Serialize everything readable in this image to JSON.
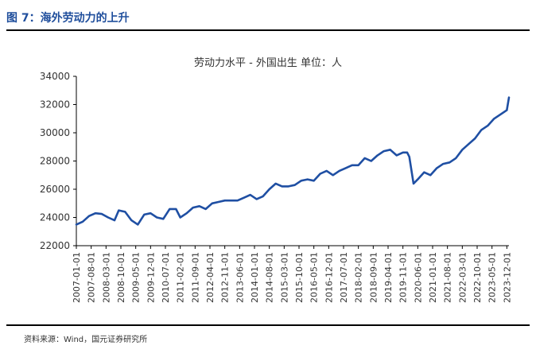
{
  "figure_title": "图 7：海外劳动力的上升",
  "source_note": "资料来源：Wind，国元证券研究所",
  "colors": {
    "line": "#1f4fa3",
    "title": "#1f4e9c"
  },
  "chart_data": {
    "type": "line",
    "title": "劳动力水平 - 外国出生 单位：人",
    "xlabel": "",
    "ylabel": "",
    "ylim": [
      22000,
      34000
    ],
    "y_ticks": [
      22000,
      24000,
      26000,
      28000,
      30000,
      32000,
      34000
    ],
    "y_tick_labels": [
      "22000",
      "24000",
      "26000",
      "28000",
      "30000",
      "32000",
      "34000"
    ],
    "x_tick_labels": [
      "2007-01-01",
      "2007-08-01",
      "2008-03-01",
      "2008-10-01",
      "2009-05-01",
      "2009-12-01",
      "2010-07-01",
      "2011-02-01",
      "2011-09-01",
      "2012-04-01",
      "2012-11-01",
      "2013-06-01",
      "2014-01-01",
      "2014-08-01",
      "2015-03-01",
      "2015-10-01",
      "2016-05-01",
      "2016-12-01",
      "2017-07-01",
      "2018-02-01",
      "2018-09-01",
      "2019-04-01",
      "2019-11-01",
      "2020-06-01",
      "2021-01-01",
      "2021-08-01",
      "2022-03-01",
      "2022-10-01",
      "2023-05-01",
      "2023-12-01"
    ],
    "grid": false,
    "series": [
      {
        "points": [
          [
            "2007-01",
            23500
          ],
          [
            "2007-04",
            23700
          ],
          [
            "2007-07",
            24100
          ],
          [
            "2007-10",
            24300
          ],
          [
            "2008-01",
            24250
          ],
          [
            "2008-04",
            24000
          ],
          [
            "2008-07",
            23800
          ],
          [
            "2008-09",
            24500
          ],
          [
            "2008-12",
            24400
          ],
          [
            "2009-03",
            23800
          ],
          [
            "2009-06",
            23500
          ],
          [
            "2009-09",
            24200
          ],
          [
            "2009-12",
            24300
          ],
          [
            "2010-03",
            24000
          ],
          [
            "2010-06",
            23900
          ],
          [
            "2010-09",
            24600
          ],
          [
            "2010-12",
            24600
          ],
          [
            "2011-02",
            24000
          ],
          [
            "2011-05",
            24300
          ],
          [
            "2011-08",
            24700
          ],
          [
            "2011-11",
            24800
          ],
          [
            "2012-02",
            24600
          ],
          [
            "2012-05",
            25000
          ],
          [
            "2012-08",
            25100
          ],
          [
            "2012-11",
            25200
          ],
          [
            "2013-02",
            25200
          ],
          [
            "2013-05",
            25200
          ],
          [
            "2013-08",
            25400
          ],
          [
            "2013-11",
            25600
          ],
          [
            "2014-02",
            25300
          ],
          [
            "2014-05",
            25500
          ],
          [
            "2014-08",
            26000
          ],
          [
            "2014-11",
            26400
          ],
          [
            "2015-02",
            26200
          ],
          [
            "2015-05",
            26200
          ],
          [
            "2015-08",
            26300
          ],
          [
            "2015-11",
            26600
          ],
          [
            "2016-02",
            26700
          ],
          [
            "2016-05",
            26600
          ],
          [
            "2016-08",
            27100
          ],
          [
            "2016-11",
            27300
          ],
          [
            "2017-02",
            27000
          ],
          [
            "2017-05",
            27300
          ],
          [
            "2017-08",
            27500
          ],
          [
            "2017-11",
            27700
          ],
          [
            "2018-02",
            27700
          ],
          [
            "2018-05",
            28200
          ],
          [
            "2018-08",
            28000
          ],
          [
            "2018-11",
            28400
          ],
          [
            "2019-02",
            28700
          ],
          [
            "2019-05",
            28800
          ],
          [
            "2019-08",
            28400
          ],
          [
            "2019-11",
            28600
          ],
          [
            "2020-01",
            28600
          ],
          [
            "2020-02",
            28300
          ],
          [
            "2020-04",
            26400
          ],
          [
            "2020-06",
            26700
          ],
          [
            "2020-09",
            27200
          ],
          [
            "2020-12",
            27000
          ],
          [
            "2021-03",
            27500
          ],
          [
            "2021-06",
            27800
          ],
          [
            "2021-09",
            27900
          ],
          [
            "2021-12",
            28200
          ],
          [
            "2022-03",
            28800
          ],
          [
            "2022-06",
            29200
          ],
          [
            "2022-09",
            29600
          ],
          [
            "2022-12",
            30200
          ],
          [
            "2023-03",
            30500
          ],
          [
            "2023-06",
            31000
          ],
          [
            "2023-09",
            31300
          ],
          [
            "2023-12",
            31600
          ],
          [
            "2024-01",
            32500
          ]
        ]
      }
    ]
  }
}
